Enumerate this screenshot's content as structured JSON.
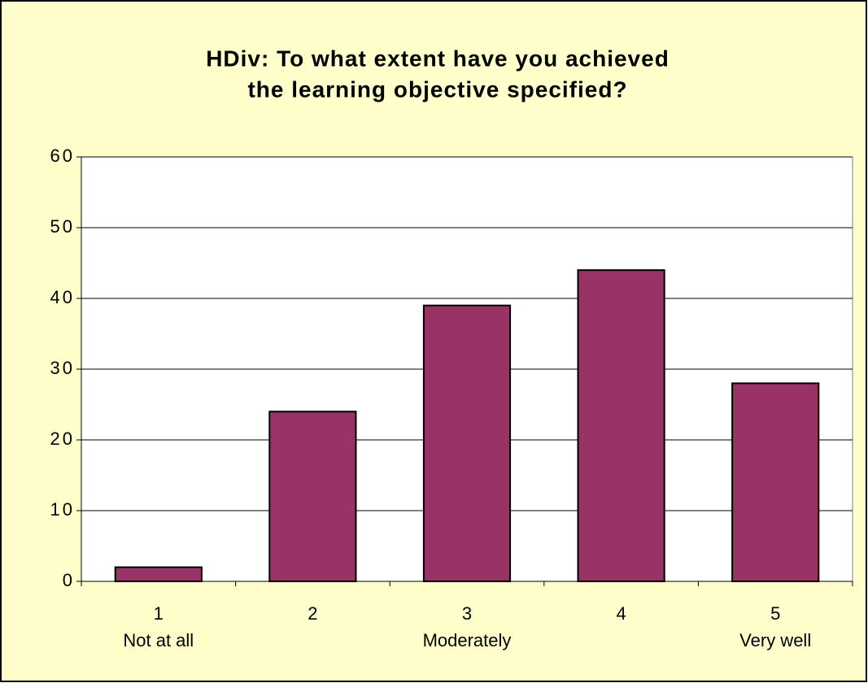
{
  "chart_data": {
    "type": "bar",
    "title_lines": [
      "HDiv: To what extent have you achieved",
      "the learning objective specified?"
    ],
    "categories": [
      "1",
      "2",
      "3",
      "4",
      "5"
    ],
    "category_descriptions": [
      "Not at all",
      null,
      "Moderately",
      null,
      "Very well"
    ],
    "values": [
      2,
      24,
      39,
      44,
      28
    ],
    "color": "#993366",
    "ylim": [
      0,
      60
    ],
    "yticks": [
      0,
      10,
      20,
      30,
      40,
      50,
      60
    ],
    "grid": true
  }
}
